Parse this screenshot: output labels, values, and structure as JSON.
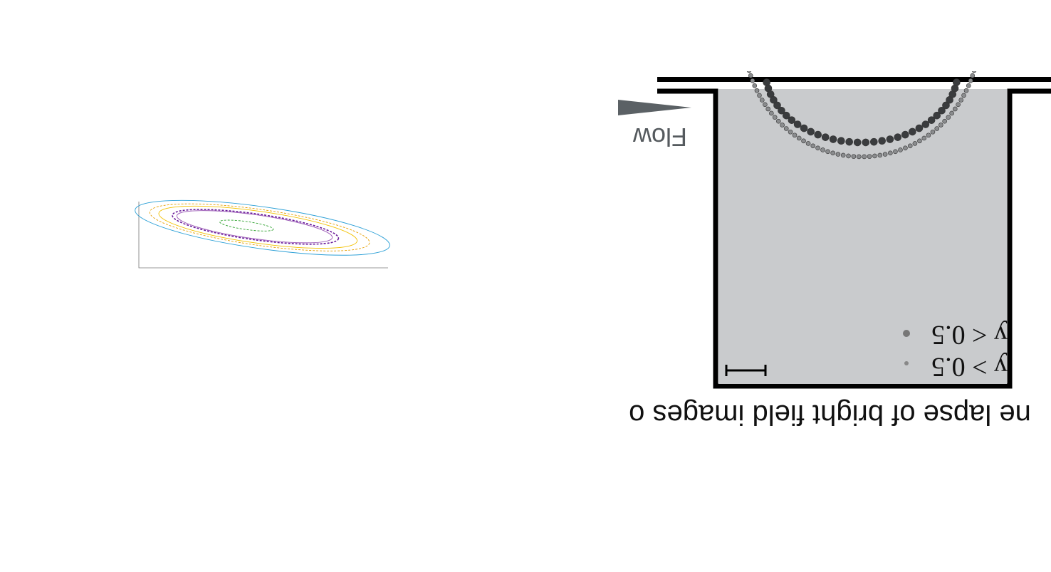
{
  "figure": {
    "flow_label": "Flow",
    "caption": "ne lapse of bright field images o",
    "legend": [
      {
        "label": "y < 0.5"
      },
      {
        "label": "y > 0.5"
      }
    ],
    "colors": {
      "background": "#ffffff",
      "channel_wall": "#000000",
      "image_bg": "#c9cbcd",
      "flow_arrow": "#5b6165"
    }
  },
  "chart_data": {
    "type": "scatter",
    "title": "",
    "xlabel": "",
    "ylabel": "",
    "series": [
      {
        "color": "#2a9fd6",
        "rx": 0.95,
        "ry": 0.42
      },
      {
        "color": "#e69f00",
        "rx": 0.82,
        "ry": 0.36
      },
      {
        "color": "#f2c100",
        "rx": 0.74,
        "ry": 0.32
      },
      {
        "color": "#6a1b9a",
        "rx": 0.62,
        "ry": 0.26
      },
      {
        "color": "#9b59b6",
        "rx": 0.58,
        "ry": 0.24
      },
      {
        "color": "#2ca02c",
        "rx": 0.2,
        "ry": 0.08
      }
    ]
  }
}
